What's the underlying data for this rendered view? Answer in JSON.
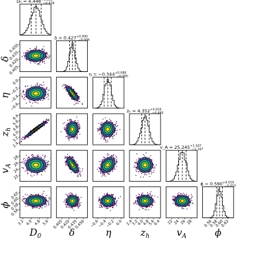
{
  "chart_data": {
    "type": "scatter",
    "subtype": "corner",
    "parameters": [
      "D0",
      "delta",
      "eta",
      "zh",
      "vA",
      "phi"
    ],
    "axis_labels": {
      "D0": {
        "base": "D",
        "sub": "0"
      },
      "delta": {
        "base": "δ",
        "sub": ""
      },
      "eta": {
        "base": "η",
        "sub": ""
      },
      "zh": {
        "base": "z",
        "sub": "h"
      },
      "vA": {
        "base": "v",
        "sub": "A"
      },
      "phi": {
        "base": "ϕ",
        "sub": ""
      }
    },
    "ranges": {
      "D0": [
        2.9,
        5.9
      ],
      "delta": [
        0.394,
        0.458
      ],
      "eta": [
        -0.72,
        0.07
      ],
      "zh": [
        2.1,
        6.6
      ],
      "vA": [
        20.2,
        29.8
      ],
      "phi": [
        0.53,
        0.64
      ]
    },
    "ticks": {
      "D0": [
        3.2,
        4.0,
        4.8,
        5.6
      ],
      "delta": [
        0.405,
        0.42,
        0.435,
        0.45
      ],
      "eta": [
        -0.6,
        -0.4,
        -0.2,
        0.0
      ],
      "zh": [
        2.4,
        3.2,
        4.0,
        4.8,
        5.6,
        6.4
      ],
      "vA": [
        22,
        24,
        26,
        28
      ],
      "phi": [
        0.56,
        0.58,
        0.6,
        0.62
      ]
    },
    "tick_labels": {
      "D0": [
        "3.2",
        "4.0",
        "4.8",
        "5.6"
      ],
      "delta": [
        "0.405",
        "0.420",
        "0.435",
        "0.450"
      ],
      "eta": [
        "−0.6",
        "−0.4",
        "−0.2",
        "0.0"
      ],
      "zh": [
        "2.4",
        "3.2",
        "4.0",
        "4.8",
        "5.6",
        "6.4"
      ],
      "vA": [
        "22",
        "24",
        "26",
        "28"
      ],
      "phi": [
        "0.56",
        "0.58",
        "0.60",
        "0.62"
      ]
    },
    "marginals": [
      {
        "param": "D0",
        "title_name": "D₀",
        "median": 4.448,
        "plus": 0.513,
        "minus": 0.458,
        "plus_text": "+0.513",
        "minus_text": "−0.458",
        "median_text": "4.448"
      },
      {
        "param": "delta",
        "title_name": "δ",
        "median": 0.427,
        "plus": 0.006,
        "minus": 0.006,
        "plus_text": "+0.006",
        "minus_text": "−0.006",
        "median_text": "0.427"
      },
      {
        "param": "eta",
        "title_name": "η",
        "median": -0.344,
        "plus": 0.088,
        "minus": 0.09,
        "plus_text": "+0.088",
        "minus_text": "−0.090",
        "median_text": "−0.344"
      },
      {
        "param": "zh",
        "title_name": "zₕ",
        "median": 4.352,
        "plus": 0.616,
        "minus": 0.48,
        "plus_text": "+0.616",
        "minus_text": "−0.480",
        "median_text": "4.352"
      },
      {
        "param": "vA",
        "title_name": "v_A",
        "median": 25.245,
        "plus": 1.187,
        "minus": 1.187,
        "plus_text": "+1.187",
        "minus_text": "−1.187",
        "median_text": "25.245"
      },
      {
        "param": "phi",
        "title_name": "ϕ",
        "median": 0.59,
        "plus": 0.01,
        "minus": 0.01,
        "plus_text": "+0.010",
        "minus_text": "−0.010",
        "median_text": "0.590"
      }
    ],
    "correlations": [
      [
        1.0,
        0.05,
        0.05,
        0.97,
        0.0,
        0.0
      ],
      [
        0.05,
        1.0,
        -0.8,
        0.05,
        -0.65,
        0.05
      ],
      [
        0.05,
        -0.8,
        1.0,
        0.05,
        0.3,
        0.05
      ],
      [
        0.97,
        0.05,
        0.05,
        1.0,
        0.0,
        0.0
      ],
      [
        0.0,
        -0.65,
        0.3,
        0.0,
        1.0,
        0.0
      ],
      [
        0.0,
        0.05,
        0.05,
        0.0,
        0.0,
        1.0
      ]
    ],
    "colors": {
      "scatter_outer": "#440154",
      "contour_ring_1": "#3b528b",
      "contour_ring_2": "#21918c",
      "contour_ring_3": "#5ec962",
      "contour_ring_4": "#fde725",
      "contour_line": "#000000",
      "hist_line": "#000000"
    },
    "grid": false,
    "legend": false
  }
}
